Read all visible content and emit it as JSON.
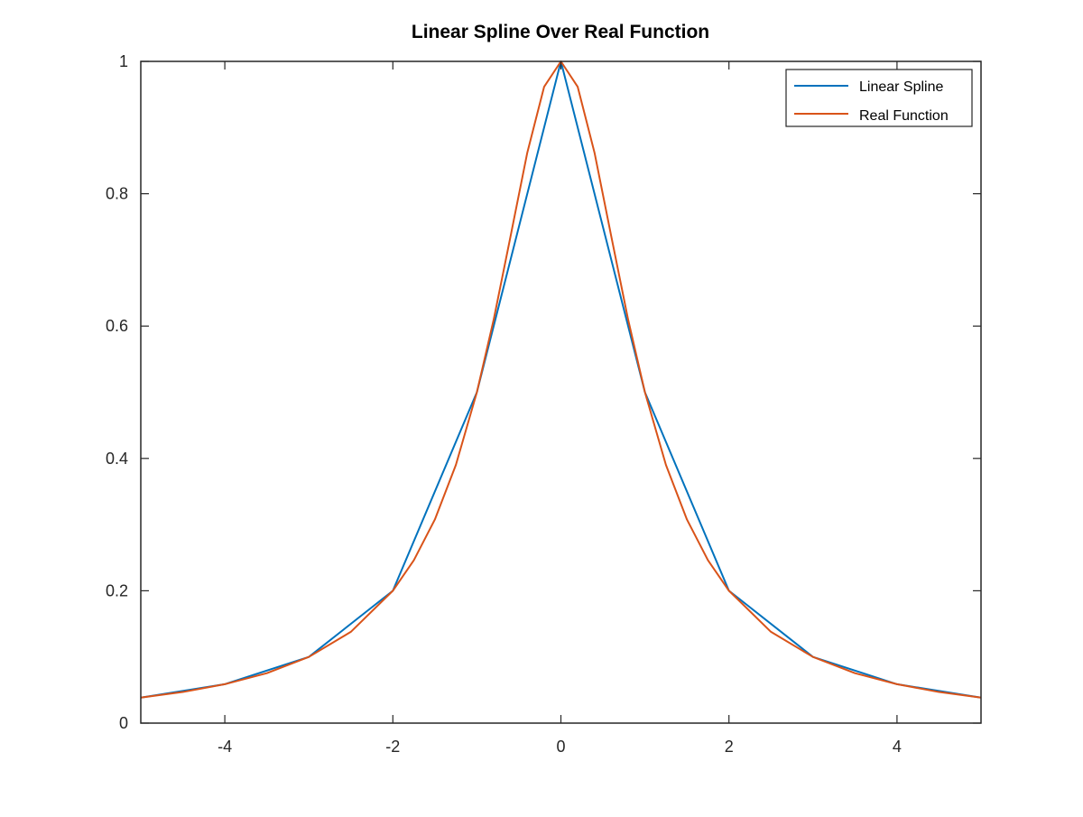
{
  "chart_data": {
    "type": "line",
    "title": "Linear Spline Over Real Function",
    "xlabel": "",
    "ylabel": "",
    "xlim": [
      -5,
      5
    ],
    "ylim": [
      0,
      1
    ],
    "x_ticks": [
      -4,
      -2,
      0,
      2,
      4
    ],
    "x_tick_labels": [
      "-4",
      "-2",
      "0",
      "2",
      "4"
    ],
    "y_ticks": [
      0,
      0.2,
      0.4,
      0.6,
      0.8,
      1
    ],
    "y_tick_labels": [
      "0",
      "0.2",
      "0.4",
      "0.6",
      "0.8",
      "1"
    ],
    "grid": false,
    "box": true,
    "legend_position": "top-right",
    "series": [
      {
        "name": "Linear Spline",
        "color": "#0072BD",
        "x": [
          -5,
          -4,
          -3,
          -2,
          -1,
          0,
          1,
          2,
          3,
          4,
          5
        ],
        "y": [
          0.0385,
          0.0588,
          0.1,
          0.2,
          0.5,
          1.0,
          0.5,
          0.2,
          0.1,
          0.0588,
          0.0385
        ]
      },
      {
        "name": "Real Function",
        "color": "#D95319",
        "x": [
          -5,
          -4.5,
          -4,
          -3.5,
          -3,
          -2.5,
          -2,
          -1.75,
          -1.5,
          -1.25,
          -1,
          -0.8,
          -0.6,
          -0.4,
          -0.2,
          0,
          0.2,
          0.4,
          0.6,
          0.8,
          1,
          1.25,
          1.5,
          1.75,
          2,
          2.5,
          3,
          3.5,
          4,
          4.5,
          5
        ],
        "y": [
          0.0385,
          0.047,
          0.0588,
          0.0755,
          0.1,
          0.1379,
          0.2,
          0.2462,
          0.3077,
          0.3902,
          0.5,
          0.6098,
          0.7353,
          0.8621,
          0.9615,
          1.0,
          0.9615,
          0.8621,
          0.7353,
          0.6098,
          0.5,
          0.3902,
          0.3077,
          0.2462,
          0.2,
          0.1379,
          0.1,
          0.0755,
          0.0588,
          0.047,
          0.0385
        ]
      }
    ]
  }
}
